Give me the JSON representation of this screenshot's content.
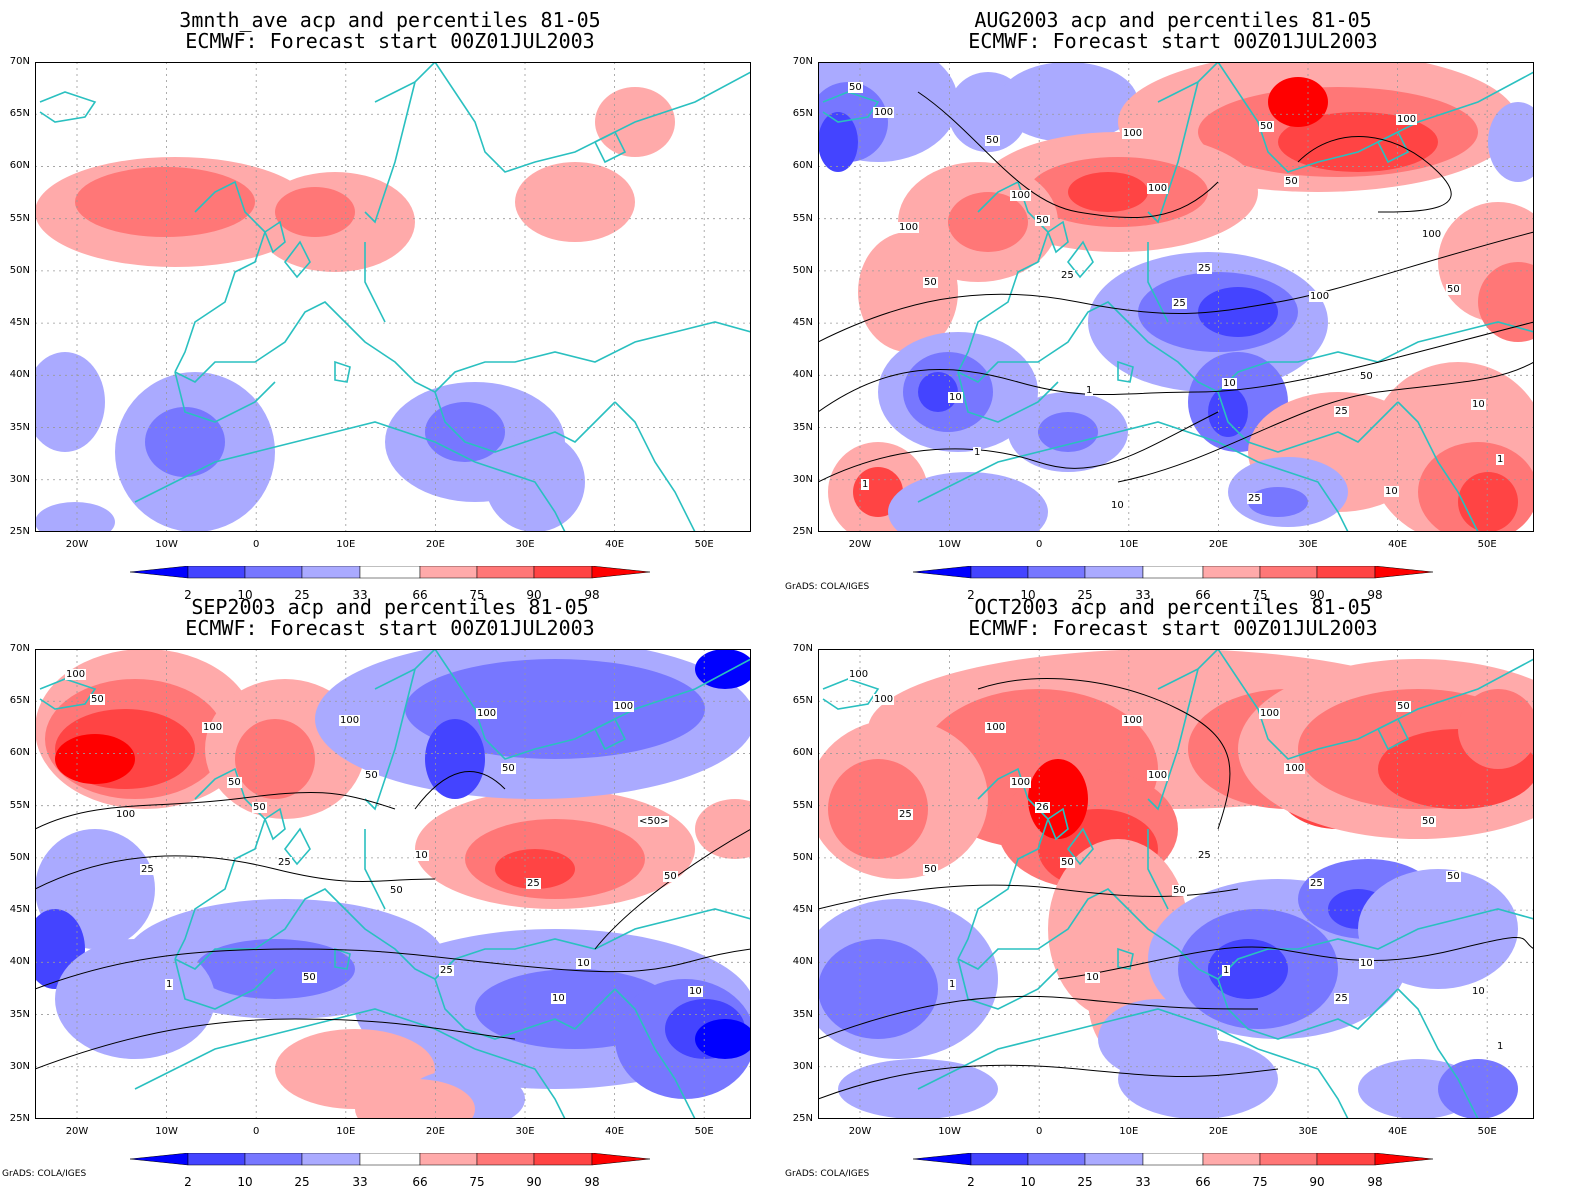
{
  "panels": [
    {
      "title1": "3mnth_ave acp and percentiles 81-05",
      "title2": "ECMWF: Forecast start 00Z01JUL2003",
      "credit": ""
    },
    {
      "title1": "AUG2003 acp and percentiles 81-05",
      "title2": "ECMWF: Forecast start 00Z01JUL2003",
      "credit": "GrADS: COLA/IGES"
    },
    {
      "title1": "SEP2003 acp and percentiles 81-05",
      "title2": "ECMWF: Forecast start 00Z01JUL2003",
      "credit": "GrADS: COLA/IGES"
    },
    {
      "title1": "OCT2003 acp and percentiles 81-05",
      "title2": "ECMWF: Forecast start 00Z01JUL2003",
      "credit": "GrADS: COLA/IGES"
    }
  ],
  "lat_ticks": [
    "70N",
    "65N",
    "60N",
    "55N",
    "50N",
    "45N",
    "40N",
    "35N",
    "30N",
    "25N"
  ],
  "lon_ticks": [
    "20W",
    "10W",
    "0",
    "10E",
    "20E",
    "30E",
    "40E",
    "50E"
  ],
  "colorbar_labels": [
    "2",
    "10",
    "25",
    "33",
    "66",
    "75",
    "90",
    "98"
  ],
  "colors": {
    "coast": "#2ac0c0",
    "pct_2": "#0000ff",
    "pct_10": "#4444ff",
    "pct_25": "#7777ff",
    "pct_33": "#aaaaff",
    "pct_66": "#ffaaaa",
    "pct_75": "#ff7777",
    "pct_90": "#ff4444",
    "pct_98": "#ff0000"
  },
  "contour_labels": {
    "aug": [
      "50",
      "50",
      "100",
      "50",
      "100",
      "100",
      "100",
      "100",
      "50",
      "100",
      "100",
      "50",
      "25",
      "100",
      "50",
      "50",
      "25",
      "25",
      "25",
      "10",
      "10",
      "1",
      "10",
      "50",
      "1",
      "1",
      "10",
      "25",
      "10",
      "1"
    ],
    "sep": [
      "100",
      "100",
      "100",
      "100",
      "100",
      "50",
      "50",
      "50",
      "50",
      "<50>",
      "100",
      "50",
      "50",
      "25",
      "50",
      "25",
      "25",
      "10",
      "10",
      "10",
      "1",
      "50",
      "25",
      "10"
    ],
    "oct": [
      "100",
      "100",
      "100",
      "100",
      "50",
      "100",
      "100",
      "100",
      "100",
      "50",
      "25",
      "26",
      "50",
      "25",
      "50",
      "50",
      "50",
      "25",
      "25",
      "10",
      "1",
      "10",
      "1",
      "10",
      "1"
    ]
  }
}
